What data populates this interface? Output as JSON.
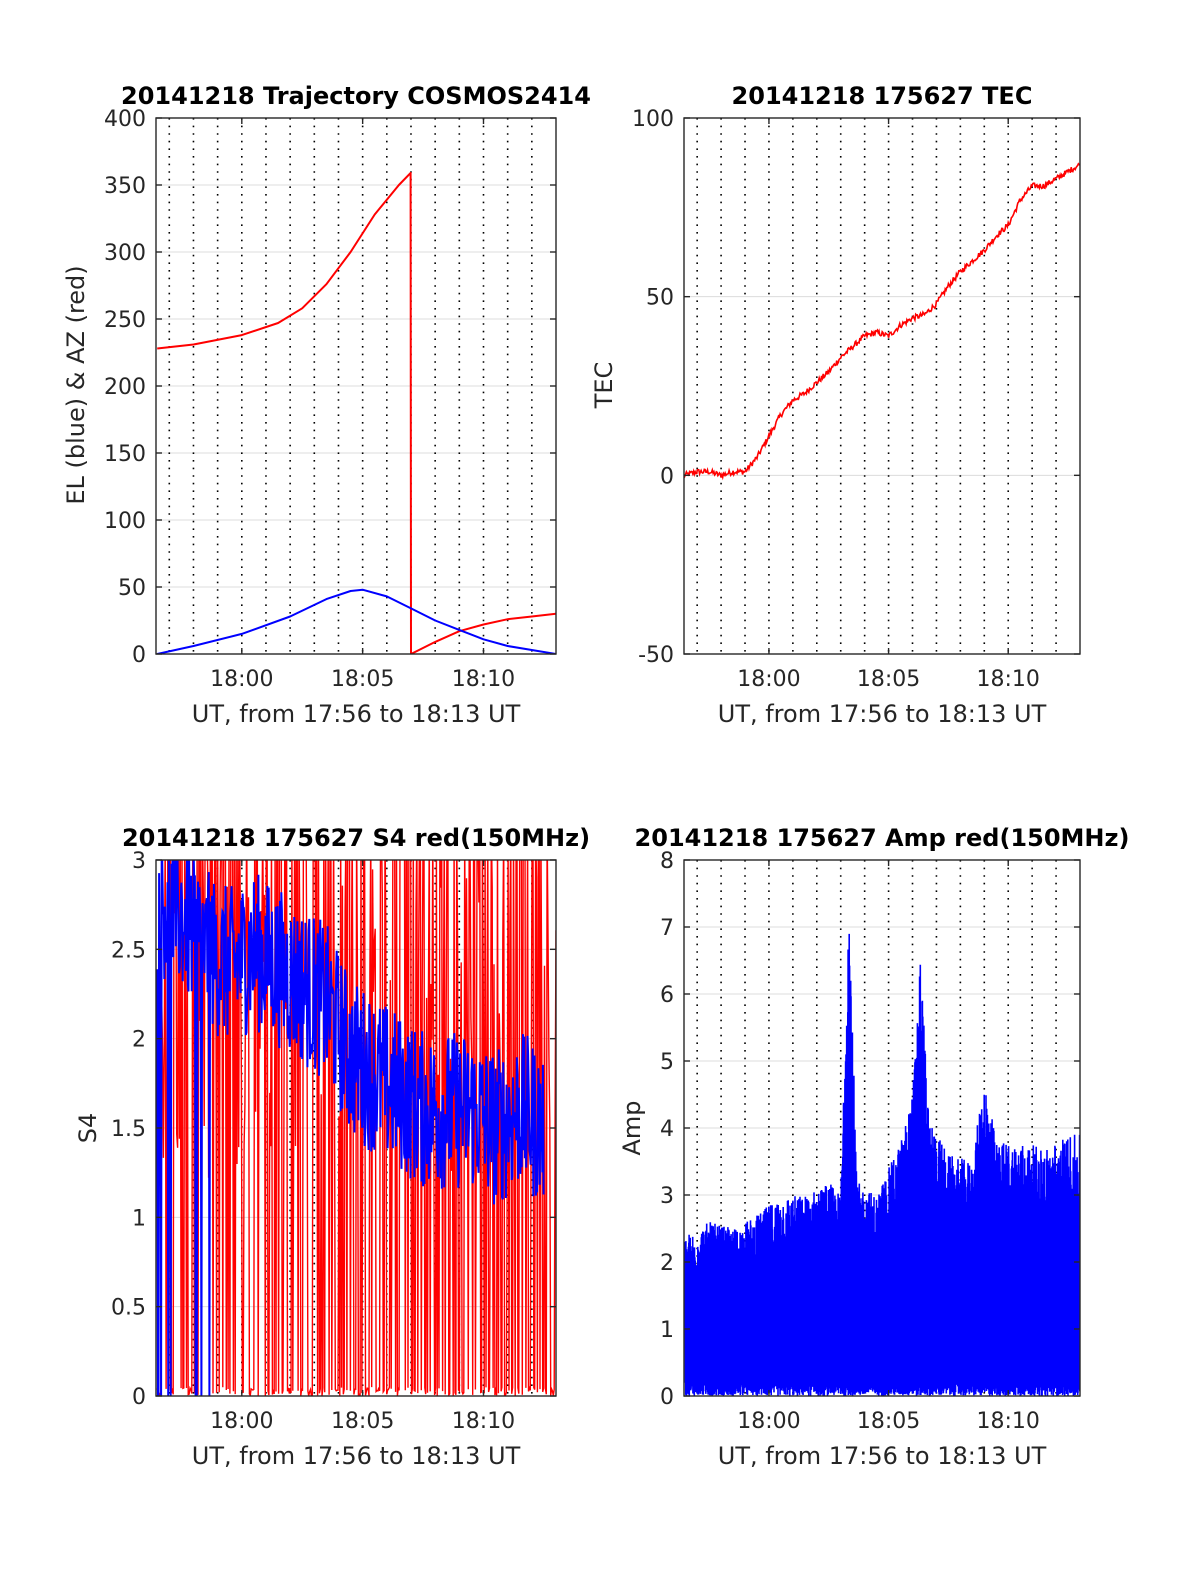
{
  "figure": {
    "colors": {
      "red": "#ff0000",
      "blue": "#0000ff",
      "grid_dotted": "#000000",
      "grid_solid": "#dcdcdc"
    }
  },
  "chart_data": [
    {
      "type": "line",
      "title": "20141218 Trajectory COSMOS2414",
      "xlabel": "UT, from 17:56 to 18:13 UT",
      "ylabel": "EL (blue) & AZ (red)",
      "xlim": [
        "17:56:27",
        "18:13:00"
      ],
      "ylim": [
        0,
        400
      ],
      "xticks": [
        "18:00",
        "18:05",
        "18:10"
      ],
      "yticks": [
        "0",
        "50",
        "100",
        "150",
        "200",
        "250",
        "300",
        "350",
        "400"
      ],
      "grid": "dotted vertical every minute, light horizontal",
      "series": [
        {
          "color": "#ff0000",
          "x": [
            "17:56:30",
            "17:58:00",
            "18:00:00",
            "18:01:30",
            "18:02:30",
            "18:03:30",
            "18:04:30",
            "18:05:30",
            "18:06:30",
            "18:06:59",
            "18:07:00",
            "18:08:00",
            "18:09:00",
            "18:10:00",
            "18:11:00",
            "18:12:00",
            "18:13:00"
          ],
          "values": [
            228,
            231,
            238,
            247,
            258,
            276,
            300,
            328,
            350,
            359,
            0,
            9,
            17,
            22,
            26,
            28,
            30
          ]
        },
        {
          "color": "#0000ff",
          "x": [
            "17:56:30",
            "17:58:00",
            "18:00:00",
            "18:02:00",
            "18:03:30",
            "18:04:30",
            "18:05:00",
            "18:06:00",
            "18:07:00",
            "18:08:00",
            "18:09:00",
            "18:10:00",
            "18:11:00",
            "18:12:00",
            "18:13:00"
          ],
          "values": [
            0,
            6,
            15,
            28,
            41,
            47,
            48,
            43,
            34,
            25,
            18,
            11,
            6,
            3,
            0
          ]
        }
      ]
    },
    {
      "type": "line",
      "title": "20141218 175627 TEC",
      "xlabel": "UT, from 17:56 to 18:13 UT",
      "ylabel": "TEC",
      "xlim": [
        "17:56:27",
        "18:13:00"
      ],
      "ylim": [
        -50,
        100
      ],
      "xticks": [
        "18:00",
        "18:05",
        "18:10"
      ],
      "yticks": [
        "-50",
        "0",
        "50",
        "100"
      ],
      "grid": "dotted vertical every minute, light horizontal",
      "series": [
        {
          "color": "#ff0000",
          "x": [
            "17:56:27",
            "17:57:00",
            "17:57:30",
            "17:58:00",
            "17:58:30",
            "17:59:00",
            "17:59:30",
            "18:00:00",
            "18:00:30",
            "18:01:00",
            "18:01:30",
            "18:02:00",
            "18:02:30",
            "18:03:00",
            "18:03:30",
            "18:04:00",
            "18:04:30",
            "18:05:00",
            "18:05:30",
            "18:06:00",
            "18:06:30",
            "18:07:00",
            "18:07:30",
            "18:08:00",
            "18:08:30",
            "18:09:00",
            "18:09:30",
            "18:10:00",
            "18:10:30",
            "18:11:00",
            "18:11:30",
            "18:12:00",
            "18:12:30",
            "18:13:00"
          ],
          "values": [
            0,
            1,
            1,
            0,
            1,
            1,
            5,
            11,
            17,
            21,
            23,
            26,
            29,
            33,
            36,
            39,
            40,
            39,
            42,
            44,
            45,
            48,
            53,
            57,
            60,
            63,
            67,
            70,
            77,
            81,
            81,
            83,
            85,
            87
          ]
        }
      ]
    },
    {
      "type": "line",
      "title": "20141218 175627 S4 red(150MHz)",
      "xlabel": "UT, from 17:56 to 18:13 UT",
      "ylabel": "S4",
      "xlim": [
        "17:56:27",
        "18:13:00"
      ],
      "ylim": [
        0,
        3
      ],
      "xticks": [
        "18:00",
        "18:05",
        "18:10"
      ],
      "yticks": [
        "0",
        "0.5",
        "1",
        "1.5",
        "2",
        "2.5",
        "3"
      ],
      "grid": "dotted vertical every minute, light horizontal",
      "series": [
        {
          "color": "#ff0000",
          "style": "dense noisy spikes between 0 and above 3"
        },
        {
          "color": "#0000ff",
          "style": "dense noisy trace from about 3 at start decaying to 1.2-2.0",
          "x": [
            "17:56:30",
            "17:57:30",
            "17:58:30",
            "17:59:30",
            "18:00:30",
            "18:01:30",
            "18:02:30",
            "18:03:30",
            "18:04:30",
            "18:05:30",
            "18:06:30",
            "18:07:30",
            "18:08:30",
            "18:09:30",
            "18:10:30",
            "18:11:30",
            "18:12:30"
          ],
          "values": [
            2.8,
            2.7,
            2.5,
            2.4,
            2.5,
            2.4,
            2.3,
            2.2,
            1.9,
            1.8,
            1.7,
            1.6,
            1.6,
            1.6,
            1.5,
            1.6,
            1.5
          ]
        }
      ]
    },
    {
      "type": "line",
      "title": "20141218 175627 Amp red(150MHz)",
      "xlabel": "UT, from 17:56 to 18:13 UT",
      "ylabel": "Amp",
      "xlim": [
        "17:56:27",
        "18:13:00"
      ],
      "ylim": [
        0,
        8
      ],
      "xticks": [
        "18:00",
        "18:05",
        "18:10"
      ],
      "yticks": [
        "0",
        "1",
        "2",
        "3",
        "4",
        "5",
        "6",
        "7",
        "8"
      ],
      "grid": "dotted vertical every minute, light horizontal",
      "series": [
        {
          "color": "#0000ff",
          "style": "dense oscillation from 0 up to an envelope",
          "x": [
            "17:56:30",
            "17:57:30",
            "17:58:30",
            "17:59:30",
            "18:00:30",
            "18:01:30",
            "18:02:30",
            "18:03:00",
            "18:03:20",
            "18:03:40",
            "18:04:30",
            "18:05:30",
            "18:06:00",
            "18:06:20",
            "18:06:40",
            "18:07:30",
            "18:08:30",
            "18:09:00",
            "18:09:30",
            "18:10:30",
            "18:11:30",
            "18:12:30"
          ],
          "values": [
            2.4,
            2.6,
            2.5,
            2.7,
            3.0,
            3.0,
            3.2,
            3.0,
            7.8,
            3.2,
            3.0,
            3.8,
            4.5,
            6.7,
            4.2,
            3.6,
            3.5,
            4.8,
            3.8,
            3.8,
            3.7,
            3.9
          ]
        }
      ]
    }
  ]
}
